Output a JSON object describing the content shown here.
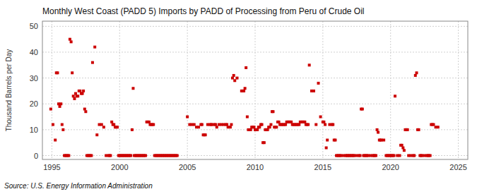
{
  "chart_data": {
    "type": "scatter",
    "title": "Monthly West Coast (PADD 5) Imports by PADD of Processing from Peru of Crude Oil",
    "ylabel": "Thousand Barrels per Day",
    "source": "Source: U.S. Energy Information Administration",
    "color": "#cc0000",
    "marker": "square",
    "grid": true,
    "xlim": [
      1994.3,
      2025.7
    ],
    "ylim": [
      -1.5,
      52
    ],
    "xticks": [
      1995,
      2000,
      2005,
      2010,
      2015,
      2020,
      2025
    ],
    "yticks": [
      0,
      10,
      20,
      30,
      40,
      50
    ],
    "x": [
      1994.92,
      1995.08,
      1995.25,
      1995.33,
      1995.42,
      1995.5,
      1995.58,
      1995.67,
      1995.75,
      1995.83,
      1995.92,
      1996.0,
      1996.08,
      1996.17,
      1996.25,
      1996.33,
      1996.42,
      1996.5,
      1996.58,
      1996.67,
      1996.75,
      1996.83,
      1996.92,
      1997.0,
      1997.08,
      1997.17,
      1997.25,
      1997.33,
      1997.42,
      1997.5,
      1997.58,
      1997.67,
      1997.75,
      1997.83,
      1997.92,
      1998.0,
      1998.17,
      1998.33,
      1998.5,
      1998.67,
      1998.83,
      1999.0,
      1999.17,
      1999.25,
      1999.33,
      1999.42,
      1999.5,
      1999.58,
      1999.67,
      1999.75,
      1999.83,
      1999.92,
      2000.0,
      2000.08,
      2000.17,
      2000.25,
      2000.33,
      2000.42,
      2000.5,
      2000.58,
      2000.67,
      2000.75,
      2000.83,
      2000.92,
      2001.0,
      2001.08,
      2001.17,
      2001.25,
      2001.33,
      2001.42,
      2001.5,
      2001.58,
      2001.67,
      2001.75,
      2001.83,
      2001.92,
      2002.0,
      2002.08,
      2002.17,
      2002.25,
      2002.33,
      2002.42,
      2002.5,
      2002.58,
      2002.67,
      2002.75,
      2002.83,
      2002.92,
      2003.0,
      2003.08,
      2003.17,
      2003.25,
      2003.33,
      2003.42,
      2003.5,
      2003.58,
      2003.67,
      2003.75,
      2003.83,
      2003.92,
      2004.0,
      2004.08,
      2004.17,
      2004.25,
      2005.0,
      2005.17,
      2005.33,
      2005.5,
      2005.67,
      2005.83,
      2006.0,
      2006.08,
      2006.17,
      2006.25,
      2006.33,
      2006.5,
      2006.67,
      2006.75,
      2006.83,
      2007.0,
      2007.08,
      2007.17,
      2007.33,
      2007.5,
      2007.67,
      2007.83,
      2007.92,
      2008.0,
      2008.17,
      2008.25,
      2008.33,
      2008.42,
      2008.5,
      2008.67,
      2009.0,
      2009.08,
      2009.17,
      2009.25,
      2009.33,
      2009.42,
      2009.5,
      2009.67,
      2009.75,
      2009.83,
      2009.92,
      2010.0,
      2010.08,
      2010.17,
      2010.25,
      2010.33,
      2010.42,
      2010.5,
      2010.58,
      2010.67,
      2010.75,
      2010.83,
      2010.92,
      2011.0,
      2011.08,
      2011.17,
      2011.25,
      2011.33,
      2011.42,
      2011.5,
      2011.58,
      2011.67,
      2011.75,
      2011.83,
      2011.92,
      2012.0,
      2012.08,
      2012.17,
      2012.25,
      2012.33,
      2012.42,
      2012.5,
      2012.58,
      2012.67,
      2012.75,
      2012.83,
      2012.92,
      2013.0,
      2013.08,
      2013.17,
      2013.25,
      2013.33,
      2013.42,
      2013.5,
      2013.58,
      2013.67,
      2013.75,
      2013.83,
      2013.92,
      2014.0,
      2014.17,
      2014.33,
      2014.5,
      2014.67,
      2014.83,
      2015.0,
      2015.08,
      2015.17,
      2015.25,
      2015.33,
      2015.5,
      2015.67,
      2015.75,
      2015.83,
      2015.92,
      2016.0,
      2016.08,
      2016.17,
      2016.25,
      2016.33,
      2016.5,
      2016.67,
      2016.75,
      2016.83,
      2016.92,
      2017.0,
      2017.08,
      2017.17,
      2017.25,
      2017.33,
      2017.5,
      2017.67,
      2017.75,
      2017.83,
      2017.92,
      2018.0,
      2018.08,
      2018.17,
      2018.25,
      2018.33,
      2018.5,
      2018.67,
      2018.75,
      2018.83,
      2018.92,
      2019.0,
      2019.08,
      2019.17,
      2019.25,
      2019.33,
      2019.5,
      2019.67,
      2019.75,
      2019.83,
      2019.92,
      2020.0,
      2020.08,
      2020.17,
      2020.25,
      2020.33,
      2020.5,
      2020.67,
      2020.75,
      2020.83,
      2020.92,
      2021.0,
      2021.08,
      2021.17,
      2021.25,
      2021.33,
      2021.5,
      2021.67,
      2021.75,
      2021.83,
      2021.92,
      2022.0,
      2022.08,
      2022.17,
      2022.25,
      2022.33,
      2022.5,
      2022.67,
      2022.75,
      2022.83,
      2022.92,
      2023.0,
      2023.08,
      2023.17,
      2023.33,
      2023.5
    ],
    "values": [
      18,
      12,
      6,
      32,
      32,
      20,
      19,
      20,
      12,
      10,
      0,
      0,
      0,
      0,
      0,
      45,
      44,
      32,
      23,
      22,
      24,
      23,
      23,
      25,
      25,
      24,
      24,
      25,
      18,
      17,
      0,
      0,
      0,
      0,
      0,
      36,
      42,
      8,
      12,
      12,
      11,
      0,
      0,
      0,
      0,
      13,
      12,
      12,
      11,
      11,
      11,
      0,
      0,
      0,
      0,
      0,
      0,
      0,
      0,
      0,
      0,
      0,
      0,
      10,
      26,
      0,
      0,
      0,
      0,
      0,
      0,
      0,
      0,
      0,
      0,
      0,
      13,
      13,
      13,
      12,
      12,
      12,
      12,
      0,
      0,
      0,
      0,
      0,
      0,
      0,
      0,
      0,
      0,
      0,
      0,
      0,
      0,
      0,
      0,
      0,
      0,
      0,
      0,
      0,
      15,
      12,
      12,
      12,
      11,
      11,
      12,
      12,
      8,
      8,
      8,
      12,
      12,
      12,
      12,
      12,
      12,
      11,
      12,
      12,
      12,
      12,
      12,
      11,
      11,
      12,
      30,
      31,
      29,
      30,
      25,
      25,
      25,
      26,
      34,
      15,
      10,
      10,
      11,
      11,
      11,
      10,
      10,
      10,
      11,
      11,
      12,
      12,
      5,
      5,
      10,
      10,
      10,
      11,
      11,
      12,
      17,
      17,
      11,
      11,
      11,
      13,
      13,
      12,
      12,
      12,
      12,
      12,
      12,
      13,
      13,
      13,
      13,
      13,
      12,
      12,
      12,
      12,
      12,
      12,
      12,
      13,
      13,
      13,
      13,
      13,
      12,
      12,
      12,
      35,
      25,
      25,
      12,
      28,
      15,
      13,
      13,
      12,
      3,
      6,
      12,
      12,
      12,
      6,
      6,
      0,
      0,
      0,
      0,
      0,
      0,
      0,
      0,
      0,
      0,
      0,
      0,
      0,
      0,
      0,
      0,
      0,
      0,
      18,
      18,
      0,
      0,
      0,
      0,
      0,
      0,
      0,
      0,
      0,
      0,
      10,
      9,
      6,
      6,
      6,
      6,
      0,
      0,
      0,
      0,
      0,
      0,
      0,
      0,
      23,
      0,
      0,
      4,
      4,
      3,
      2,
      10,
      10,
      10,
      0,
      0,
      0,
      0,
      31,
      32,
      10,
      10,
      0,
      0,
      0,
      0,
      0,
      0,
      0,
      0,
      12,
      12,
      12,
      11,
      11
    ]
  }
}
